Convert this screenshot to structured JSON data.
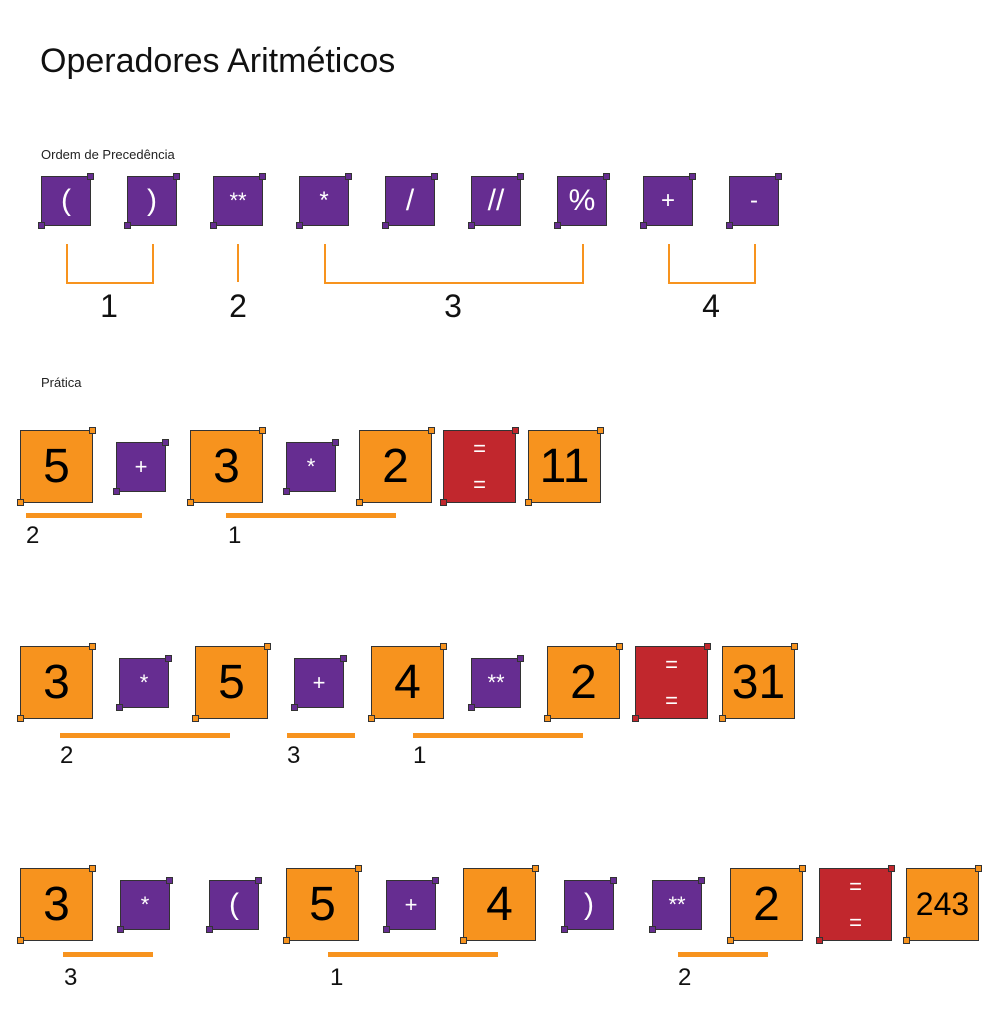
{
  "title": "Operadores Aritméticos",
  "precedence": {
    "label": "Ordem de Precedência",
    "operators": [
      "(",
      ")",
      "**",
      "*",
      "/",
      "//",
      "%",
      "+",
      "-"
    ],
    "groups": [
      {
        "rank": "1",
        "from": 0,
        "to": 1
      },
      {
        "rank": "2",
        "from": 2,
        "to": 2
      },
      {
        "rank": "3",
        "from": 3,
        "to": 6
      },
      {
        "rank": "4",
        "from": 7,
        "to": 8
      }
    ]
  },
  "practice": {
    "label": "Prática",
    "expressions": [
      {
        "tokens": [
          {
            "text": "5",
            "kind": "operand"
          },
          {
            "text": "+",
            "kind": "operator"
          },
          {
            "text": "3",
            "kind": "operand"
          },
          {
            "text": "*",
            "kind": "operator"
          },
          {
            "text": "2",
            "kind": "operand"
          },
          {
            "text": "=",
            "kind": "equals"
          },
          {
            "text": "11",
            "kind": "result"
          }
        ],
        "order": [
          {
            "rank": "2",
            "from": 0,
            "to": 1
          },
          {
            "rank": "1",
            "from": 2,
            "to": 4
          }
        ]
      },
      {
        "tokens": [
          {
            "text": "3",
            "kind": "operand"
          },
          {
            "text": "*",
            "kind": "operator"
          },
          {
            "text": "5",
            "kind": "operand"
          },
          {
            "text": "+",
            "kind": "operator"
          },
          {
            "text": "4",
            "kind": "operand"
          },
          {
            "text": "**",
            "kind": "operator"
          },
          {
            "text": "2",
            "kind": "operand"
          },
          {
            "text": "=",
            "kind": "equals"
          },
          {
            "text": "31",
            "kind": "result"
          }
        ],
        "order": [
          {
            "rank": "2",
            "from": 0,
            "to": 2
          },
          {
            "rank": "3",
            "from": 3,
            "to": 3
          },
          {
            "rank": "1",
            "from": 4,
            "to": 6
          }
        ]
      },
      {
        "tokens": [
          {
            "text": "3",
            "kind": "operand"
          },
          {
            "text": "*",
            "kind": "operator"
          },
          {
            "text": "(",
            "kind": "operator"
          },
          {
            "text": "5",
            "kind": "operand"
          },
          {
            "text": "+",
            "kind": "operator"
          },
          {
            "text": "4",
            "kind": "operand"
          },
          {
            "text": ")",
            "kind": "operator"
          },
          {
            "text": "**",
            "kind": "operator"
          },
          {
            "text": "2",
            "kind": "operand"
          },
          {
            "text": "=",
            "kind": "equals"
          },
          {
            "text": "243",
            "kind": "result"
          }
        ],
        "order": [
          {
            "rank": "3",
            "from": 1,
            "to": 1
          },
          {
            "rank": "1",
            "from": 3,
            "to": 5
          },
          {
            "rank": "2",
            "from": 8,
            "to": 8
          }
        ]
      }
    ]
  },
  "colors": {
    "operator": "#662d91",
    "operand": "#f7931e",
    "equals": "#c1272d",
    "accent": "#f7931e"
  }
}
